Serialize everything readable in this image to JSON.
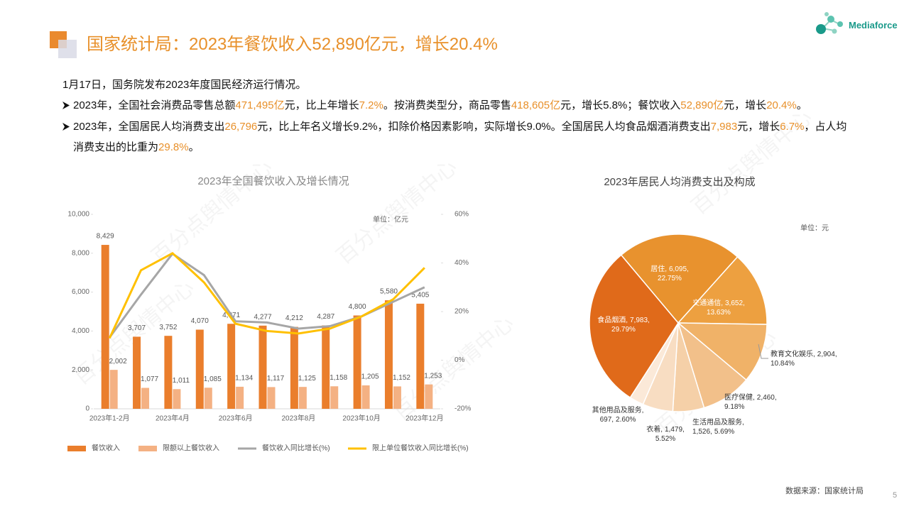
{
  "title": "国家统计局：2023年餐饮收入52,890亿元，增长20.4%",
  "logo": "Mediaforce",
  "intro": "1月17日，国务院发布2023年度国民经济运行情况。",
  "bullets": [
    {
      "segments": [
        {
          "text": "2023年，全国社会消费品零售总额"
        },
        {
          "text": "471,495亿",
          "color": "#e8902a"
        },
        {
          "text": "元，比上年增长"
        },
        {
          "text": "7.2%",
          "color": "#e8902a"
        },
        {
          "text": "。按消费类型分，商品零售"
        },
        {
          "text": "418,605亿",
          "color": "#e8902a"
        },
        {
          "text": "元，增长5.8%；餐饮收入"
        },
        {
          "text": "52,890亿",
          "color": "#e8902a"
        },
        {
          "text": "元，增长"
        },
        {
          "text": "20.4%",
          "color": "#e8902a"
        },
        {
          "text": "。"
        }
      ]
    },
    {
      "segments": [
        {
          "text": "2023年，全国居民人均消费支出"
        },
        {
          "text": "26,796",
          "color": "#e8902a"
        },
        {
          "text": "元，比上年名义增长9.2%，扣除价格因素影响，实际增长9.0%。全国居民人均食品烟酒消费支出"
        },
        {
          "text": "7,983",
          "color": "#e8902a"
        },
        {
          "text": "元，增长"
        },
        {
          "text": "6.7%",
          "color": "#e8902a"
        },
        {
          "text": "，占人均消费支出的比重为"
        },
        {
          "text": "29.8%",
          "color": "#e8902a"
        },
        {
          "text": "。"
        }
      ]
    }
  ],
  "watermark": "百分点舆情中心",
  "chart_data": [
    {
      "type": "combo",
      "title": "2023年全国餐饮收入及增长情况",
      "unit": "单位：亿元",
      "categories": [
        "2023年1-2月",
        null,
        "2023年4月",
        null,
        "2023年6月",
        null,
        "2023年8月",
        null,
        "2023年10月",
        null,
        "2023年12月"
      ],
      "series": [
        {
          "name": "餐饮收入",
          "type": "bar",
          "color": "#ea7e2c",
          "values": [
            8429,
            3707,
            3752,
            4070,
            4371,
            4277,
            4212,
            4287,
            4800,
            5580,
            5405
          ],
          "value_labels": [
            "8,429",
            "3,707",
            "3,752",
            "4,070",
            "4,371",
            "4,277",
            "4,212",
            "4,287",
            "4,800",
            "5,580",
            "5,405"
          ]
        },
        {
          "name": "限额以上餐饮收入",
          "type": "bar",
          "color": "#f4b183",
          "values": [
            2002,
            1077,
            1011,
            1085,
            1134,
            1117,
            1125,
            1158,
            1205,
            1152,
            1253
          ],
          "value_labels": [
            "2,002",
            "1,077",
            "1,011",
            "1,085",
            "1,134",
            "1,117",
            "1,125",
            "1,158",
            "1,205",
            "1,152",
            "1,253"
          ]
        },
        {
          "name": "餐饮收入同比增长(%)",
          "type": "line",
          "axis": "y2",
          "color": "#a6a6a6",
          "values": [
            9.3,
            27,
            43.8,
            35,
            16,
            15.5,
            13,
            14,
            18,
            24,
            30
          ]
        },
        {
          "name": "限上单位餐饮收入同比增长(%)",
          "type": "line",
          "axis": "y2",
          "color": "#ffc000",
          "values": [
            9,
            37,
            44,
            32,
            15,
            12,
            11,
            13,
            18,
            25,
            38
          ]
        }
      ],
      "ylim": [
        0,
        10000
      ],
      "yticks": [
        0,
        {
          "value": 2000,
          "label": "2,000"
        },
        {
          "value": 4000,
          "label": "4,000"
        },
        {
          "value": 6000,
          "label": "6,000"
        },
        {
          "value": 8000,
          "label": "8,000"
        },
        {
          "value": 10000,
          "label": "10,000"
        }
      ],
      "y2lim": [
        -20,
        60
      ],
      "y2ticks": [
        {
          "value": -20,
          "label": "-20%"
        },
        {
          "value": 0,
          "label": "0%"
        },
        {
          "value": 20,
          "label": "20%"
        },
        {
          "value": 40,
          "label": "40%"
        },
        {
          "value": 60,
          "label": "60%"
        }
      ]
    },
    {
      "type": "pie",
      "title": "2023年居民人均消费支出及构成",
      "unit": "单位：元",
      "categories": [
        "居住",
        "交通通信",
        "教育文化娱乐",
        "医疗保健",
        "生活用品及服务",
        "衣着",
        "其他用品及服务",
        "食品烟酒"
      ],
      "values": [
        6095,
        3652,
        2904,
        2460,
        1526,
        1479,
        697,
        7983
      ],
      "value_labels": [
        "6,095",
        "3,652",
        "2,904",
        "2,460",
        "1,526",
        "1,479",
        "697",
        "7,983"
      ],
      "percent_labels": [
        "22.75%",
        "13.63%",
        "10.84%",
        "9.18%",
        "5.69%",
        "5.52%",
        "2.60%",
        "29.79%"
      ],
      "label_separator": ",",
      "colors": [
        "#e8922e",
        "#eda040",
        "#f0b268",
        "#f2c08a",
        "#f5d0a8",
        "#f8ddc2",
        "#fbe9d8",
        "#e06a1a"
      ]
    }
  ],
  "source": "数据来源：国家统计局",
  "page_number": "5"
}
